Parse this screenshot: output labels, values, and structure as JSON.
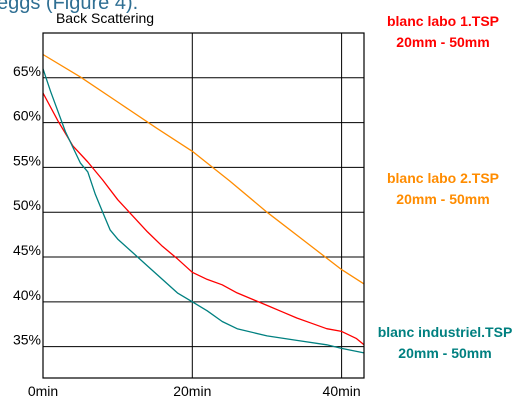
{
  "page": {
    "caption": "eggs (Figure 4)."
  },
  "colors": {
    "blanc_labo_1": "#ff0000",
    "blanc_labo_2": "#ff8c00",
    "blanc_industriel": "#008080",
    "axis": "#000000",
    "grid": "#000000"
  },
  "chart_data": {
    "type": "line",
    "title": "Back Scattering",
    "xlabel": "",
    "ylabel": "",
    "x_unit": "min",
    "xlim": [
      0,
      43
    ],
    "ylim": [
      31.5,
      70
    ],
    "x_ticks": [
      "0min",
      "20min",
      "40min"
    ],
    "x_tick_values": [
      0,
      20,
      40
    ],
    "y_ticks": [
      "35%",
      "40%",
      "45%",
      "50%",
      "55%",
      "60%",
      "65%"
    ],
    "y_tick_values": [
      35,
      40,
      45,
      50,
      55,
      60,
      65
    ],
    "grid": true,
    "legend_placement": "right",
    "series": [
      {
        "name": "blanc labo 1.TSP",
        "legend_line2": "20mm - 50mm",
        "color_key": "blanc_labo_1",
        "x": [
          0,
          2,
          4,
          6,
          8,
          10,
          12,
          14,
          16,
          18,
          20,
          22,
          24,
          26,
          28,
          30,
          32,
          34,
          36,
          38,
          40,
          42,
          43
        ],
        "values": [
          63.3,
          60.2,
          57.4,
          55.6,
          53.6,
          51.4,
          49.6,
          47.8,
          46.2,
          44.8,
          43.3,
          42.5,
          41.9,
          41.0,
          40.3,
          39.6,
          38.9,
          38.2,
          37.6,
          37.0,
          36.7,
          35.9,
          35.2
        ]
      },
      {
        "name": "blanc labo 2.TSP",
        "legend_line2": "20mm - 50mm",
        "color_key": "blanc_labo_2",
        "x": [
          0,
          5,
          10,
          15,
          20,
          25,
          30,
          35,
          40,
          43
        ],
        "values": [
          67.6,
          65.1,
          62.3,
          59.5,
          56.8,
          53.5,
          50.0,
          46.8,
          43.6,
          42.0
        ]
      },
      {
        "name": "blanc industriel.TSP",
        "legend_line2": "20mm - 50mm",
        "color_key": "blanc_industriel",
        "x": [
          0,
          1,
          3,
          5,
          6,
          7,
          8,
          9,
          10,
          12,
          14,
          16,
          18,
          20,
          22,
          24,
          26,
          30,
          34,
          38,
          40,
          43
        ],
        "values": [
          66.0,
          63.5,
          59.0,
          55.5,
          54.5,
          52.0,
          50.0,
          48.0,
          47.0,
          45.5,
          44.0,
          42.5,
          41.0,
          40.0,
          39.0,
          37.8,
          37.0,
          36.2,
          35.7,
          35.2,
          34.8,
          34.3
        ]
      }
    ]
  }
}
